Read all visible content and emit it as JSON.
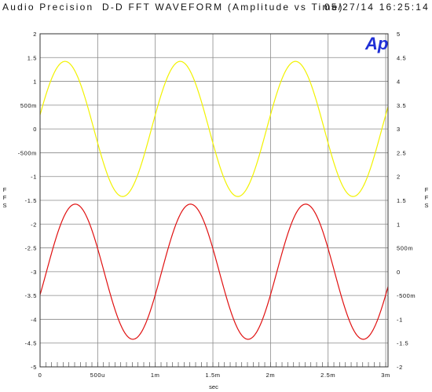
{
  "header": {
    "left": "Audio Precision",
    "center": "D-D FFT WAVEFORM (Amplitude vs Time)",
    "right": "05/27/14 16:25:14"
  },
  "logo": {
    "text": "Ap",
    "color": "#1f2fd6"
  },
  "chart_data": {
    "type": "line",
    "title": "D-D FFT WAVEFORM (Amplitude vs Time)",
    "xlabel": "sec",
    "ylabel_left": "FFS",
    "ylabel_right": "FFS",
    "xlim": [
      0,
      0.00302
    ],
    "ylim_left": [
      -5,
      2
    ],
    "ylim_right": [
      -2,
      5
    ],
    "grid": true,
    "x_ticks": [
      {
        "value": 0,
        "label": "0"
      },
      {
        "value": 0.0005,
        "label": "500u"
      },
      {
        "value": 0.001,
        "label": "1m"
      },
      {
        "value": 0.0015,
        "label": "1.5m"
      },
      {
        "value": 0.002,
        "label": "2m"
      },
      {
        "value": 0.0025,
        "label": "2.5m"
      },
      {
        "value": 0.003,
        "label": "3m"
      }
    ],
    "y_ticks_left": [
      {
        "value": 2,
        "label": "2"
      },
      {
        "value": 1.5,
        "label": "1.5"
      },
      {
        "value": 1,
        "label": "1"
      },
      {
        "value": 0.5,
        "label": "500m"
      },
      {
        "value": 0,
        "label": "0"
      },
      {
        "value": -0.5,
        "label": "-500m"
      },
      {
        "value": -1,
        "label": "-1"
      },
      {
        "value": -1.5,
        "label": "-1.5"
      },
      {
        "value": -2,
        "label": "-2"
      },
      {
        "value": -2.5,
        "label": "-2.5"
      },
      {
        "value": -3,
        "label": "-3"
      },
      {
        "value": -3.5,
        "label": "-3.5"
      },
      {
        "value": -4,
        "label": "-4"
      },
      {
        "value": -4.5,
        "label": "-4.5"
      },
      {
        "value": -5,
        "label": "-5"
      }
    ],
    "y_ticks_right": [
      {
        "value": 5,
        "label": "5"
      },
      {
        "value": 4.5,
        "label": "4.5"
      },
      {
        "value": 4,
        "label": "4"
      },
      {
        "value": 3.5,
        "label": "3.5"
      },
      {
        "value": 3,
        "label": "3"
      },
      {
        "value": 2.5,
        "label": "2.5"
      },
      {
        "value": 2,
        "label": "2"
      },
      {
        "value": 1.5,
        "label": "1.5"
      },
      {
        "value": 1,
        "label": "1"
      },
      {
        "value": 0.5,
        "label": "500m"
      },
      {
        "value": 0,
        "label": "0"
      },
      {
        "value": -0.5,
        "label": "-500m"
      },
      {
        "value": -1,
        "label": "-1"
      },
      {
        "value": -1.5,
        "label": "-1.5"
      },
      {
        "value": -2,
        "label": "-2"
      }
    ],
    "series": [
      {
        "color": "#f2f200",
        "axis": "left",
        "waveform": "sine",
        "amplitude": 1.42,
        "offset": 0,
        "frequency_hz": 1000,
        "phase_deg": 12
      },
      {
        "color": "#e01010",
        "axis": "left",
        "waveform": "sine",
        "amplitude": 1.42,
        "offset": -3,
        "frequency_hz": 1000,
        "phase_deg": -20
      }
    ]
  }
}
